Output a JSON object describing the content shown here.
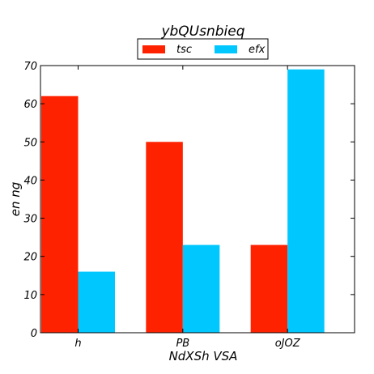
{
  "chart_data": {
    "type": "bar",
    "title": "ybQUsnbieq",
    "xlabel": "NdXSh VSA",
    "ylabel": "en ng",
    "categories": [
      "h",
      "PB",
      "oJOZ"
    ],
    "series": [
      {
        "name": "tsc",
        "values": [
          62,
          50,
          23
        ],
        "color": "#ff2200"
      },
      {
        "name": "efx",
        "values": [
          16,
          23,
          69
        ],
        "color": "#00c8ff"
      }
    ],
    "ylim": [
      0,
      70
    ],
    "yticks": [
      "0",
      "10",
      "20",
      "30",
      "40",
      "50",
      "60",
      "70"
    ],
    "grid": false,
    "legend_position": "top-center"
  }
}
